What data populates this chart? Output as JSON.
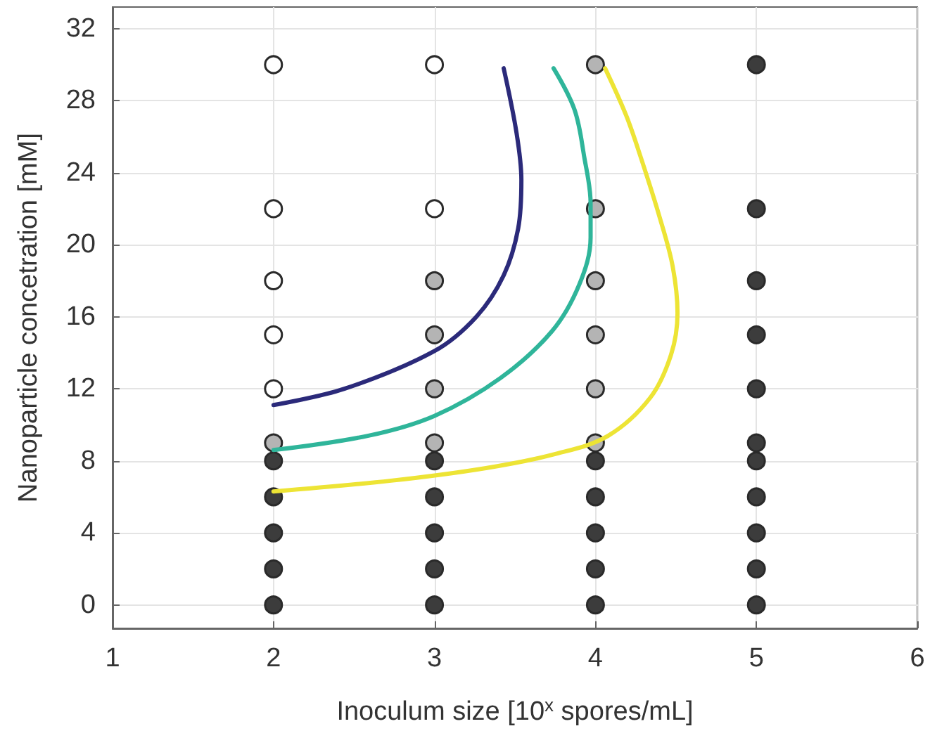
{
  "chart_data": {
    "type": "scatter",
    "xlabel": "Inoculum size [10$^{x}$ spores/mL]",
    "ylabel": "Nanoparticle concetration [mM]",
    "xlim": [
      1,
      6
    ],
    "xticks": [
      1,
      2,
      3,
      4,
      5,
      6
    ],
    "ylim": [
      -1.3,
      33.2
    ],
    "yticks": [
      0,
      4,
      8,
      12,
      16,
      20,
      24,
      28,
      32
    ],
    "grid": true,
    "marker": "circle",
    "series": [
      {
        "color": "#3c3c3c",
        "x": [
          2,
          2,
          2,
          2,
          2,
          3,
          3,
          3,
          3,
          3,
          4,
          4,
          4,
          4,
          4,
          5,
          5,
          5,
          5,
          5,
          5,
          5,
          5,
          5,
          5,
          5
        ],
        "values": [
          0,
          2,
          4,
          6,
          8,
          0,
          2,
          4,
          6,
          8,
          0,
          2,
          4,
          6,
          8,
          0,
          2,
          4,
          6,
          8,
          9,
          12,
          15,
          18,
          22,
          30
        ]
      },
      {
        "color": "#b4b4b4",
        "x": [
          2,
          3,
          3,
          3,
          3,
          4,
          4,
          4,
          4,
          4,
          4
        ],
        "values": [
          9,
          9,
          12,
          15,
          18,
          9,
          12,
          15,
          18,
          22,
          30
        ]
      },
      {
        "color": "#ffffff",
        "x": [
          2,
          2,
          2,
          2,
          2,
          3,
          3
        ],
        "values": [
          12,
          15,
          18,
          22,
          30,
          22,
          30
        ]
      },
      {
        "type": "line",
        "marker": "none",
        "color": "#2b2a7a",
        "x": [
          2.0,
          2.44,
          3.0,
          3.26,
          3.43,
          3.52,
          3.54,
          3.51,
          3.43
        ],
        "values": [
          11.1,
          12.0,
          14.1,
          16.0,
          18.3,
          20.9,
          23.6,
          26.2,
          29.8
        ]
      },
      {
        "type": "line",
        "marker": "none",
        "color": "#2fb59a",
        "x": [
          2.0,
          2.59,
          3.0,
          3.41,
          3.73,
          3.9,
          3.97,
          3.97,
          3.93,
          3.87,
          3.74
        ],
        "values": [
          8.6,
          9.4,
          10.5,
          12.6,
          15.2,
          17.8,
          20.4,
          22.3,
          24.9,
          27.5,
          29.8
        ]
      },
      {
        "type": "line",
        "marker": "none",
        "color": "#ede435",
        "x": [
          2.0,
          2.73,
          3.32,
          3.76,
          4.08,
          4.34,
          4.47,
          4.51,
          4.48,
          4.4,
          4.28,
          4.19,
          4.06
        ],
        "values": [
          6.3,
          6.9,
          7.6,
          8.4,
          9.4,
          11.5,
          13.9,
          16.2,
          18.8,
          21.5,
          24.9,
          27.2,
          29.8
        ]
      }
    ]
  }
}
